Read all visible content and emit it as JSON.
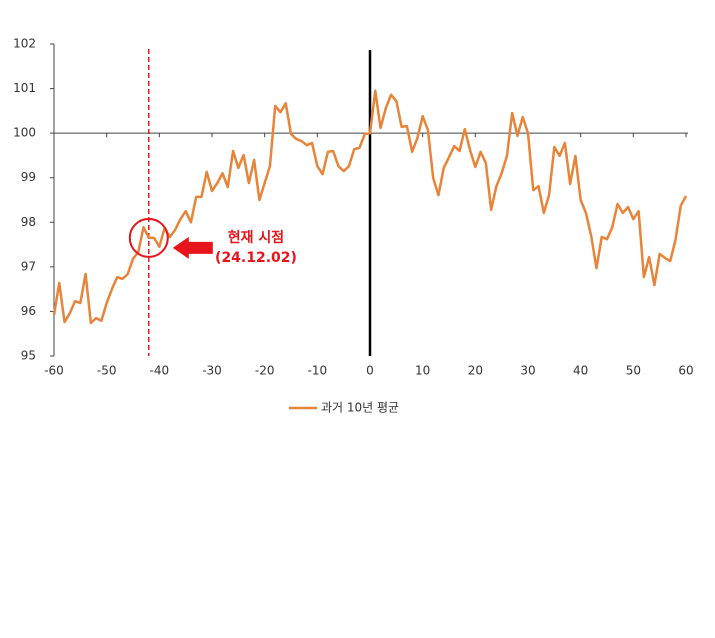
{
  "chart_data": {
    "type": "line",
    "x": [
      -60,
      -59,
      -58,
      -57,
      -56,
      -55,
      -54,
      -53,
      -52,
      -51,
      -50,
      -49,
      -48,
      -47,
      -46,
      -45,
      -44,
      -43,
      -42,
      -41,
      -40,
      -39,
      -38,
      -37,
      -36,
      -35,
      -34,
      -33,
      -32,
      -31,
      -30,
      -29,
      -28,
      -27,
      -26,
      -25,
      -24,
      -23,
      -22,
      -21,
      -20,
      -19,
      -18,
      -17,
      -16,
      -15,
      -14,
      -13,
      -12,
      -11,
      -10,
      -9,
      -8,
      -7,
      -6,
      -5,
      -4,
      -3,
      -2,
      -1,
      0,
      1,
      2,
      3,
      4,
      5,
      6,
      7,
      8,
      9,
      10,
      11,
      12,
      13,
      14,
      15,
      16,
      17,
      18,
      19,
      20,
      21,
      22,
      23,
      24,
      25,
      26,
      27,
      28,
      29,
      30,
      31,
      32,
      33,
      34,
      35,
      36,
      37,
      38,
      39,
      40,
      41,
      42,
      43,
      44,
      45,
      46,
      47,
      48,
      49,
      50,
      51,
      52,
      53,
      54,
      55,
      56,
      57,
      58,
      59,
      60
    ],
    "series": [
      {
        "name": "과거 10년 평균",
        "color": "#e8843a",
        "values": [
          95.92,
          96.64,
          95.76,
          95.96,
          96.23,
          96.19,
          96.84,
          95.74,
          95.85,
          95.79,
          96.19,
          96.5,
          96.77,
          96.73,
          96.84,
          97.18,
          97.33,
          97.89,
          97.65,
          97.65,
          97.45,
          97.87,
          97.67,
          97.83,
          98.07,
          98.25,
          98.0,
          98.57,
          98.57,
          99.13,
          98.7,
          98.88,
          99.1,
          98.79,
          99.6,
          99.22,
          99.51,
          98.88,
          99.4,
          98.5,
          98.88,
          99.26,
          100.61,
          100.47,
          100.67,
          99.98,
          99.87,
          99.82,
          99.73,
          99.78,
          99.26,
          99.08,
          99.58,
          99.6,
          99.26,
          99.15,
          99.26,
          99.64,
          99.67,
          99.98,
          100.0,
          100.95,
          100.12,
          100.56,
          100.86,
          100.72,
          100.14,
          100.16,
          99.58,
          99.89,
          100.38,
          100.07,
          98.99,
          98.61,
          99.22,
          99.46,
          99.71,
          99.6,
          100.09,
          99.62,
          99.24,
          99.58,
          99.33,
          98.28,
          98.81,
          99.1,
          99.49,
          100.45,
          99.94,
          100.36,
          100.0,
          98.72,
          98.81,
          98.21,
          98.61,
          99.69,
          99.49,
          99.78,
          98.86,
          99.49,
          98.5,
          98.21,
          97.69,
          96.97,
          97.67,
          97.62,
          97.89,
          98.41,
          98.21,
          98.34,
          98.07,
          98.25,
          96.77,
          97.22,
          96.59,
          97.29,
          97.2,
          97.13,
          97.6,
          98.37,
          98.59
        ]
      }
    ],
    "xlim": [
      -60,
      60
    ],
    "xticks": [
      -60,
      -50,
      -40,
      -30,
      -20,
      -10,
      0,
      10,
      20,
      30,
      40,
      50,
      60
    ],
    "ylim": [
      95,
      102
    ],
    "yticks": [
      95,
      96,
      97,
      98,
      99,
      100,
      101,
      102
    ],
    "x_axis_at": 100,
    "reference_lines": [
      {
        "x": 0,
        "color": "#000000",
        "dashed": false
      },
      {
        "x": -42,
        "color": "#e8141b",
        "dashed": true
      }
    ],
    "annotation": {
      "x": -42,
      "y": 97.65,
      "lines": [
        "현재 시점",
        "(24.12.02)"
      ],
      "color": "#e8141b"
    },
    "legend": "bottom"
  }
}
